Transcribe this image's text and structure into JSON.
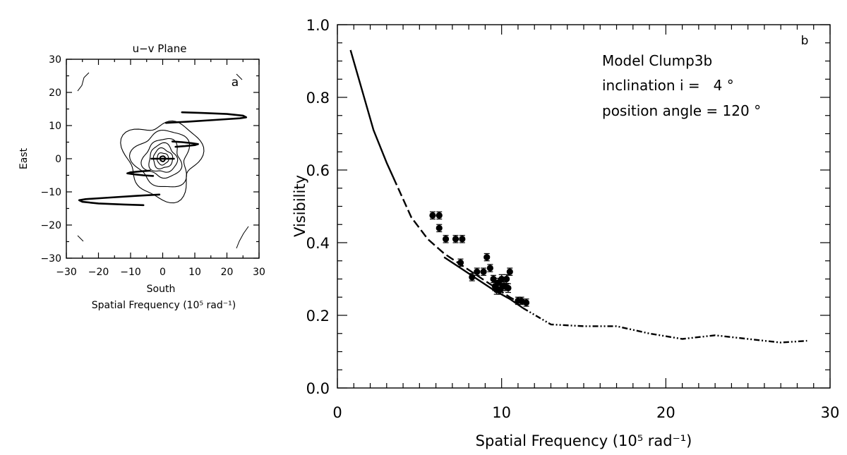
{
  "chart_data": [
    {
      "id": "a",
      "type": "contour",
      "title": "u−v Plane",
      "panel_label": "a",
      "xlabel": "South",
      "ylabel": "East",
      "xlabel2": "Spatial Frequency (10⁵ rad⁻¹)",
      "xlim": [
        -30,
        30
      ],
      "ylim": [
        -30,
        30
      ],
      "xticks": [
        -30,
        -20,
        -10,
        0,
        10,
        20,
        30
      ],
      "xtick_labels": [
        "−30",
        "−20",
        "−10",
        "0",
        "10",
        "20",
        "30"
      ],
      "yticks": [
        -30,
        -20,
        -10,
        0,
        10,
        20,
        30
      ],
      "ytick_labels": [
        "−30",
        "−20",
        "−10",
        "0",
        "10",
        "20",
        "30"
      ],
      "contour_radii": [
        0.8,
        1.8,
        3.0,
        4.3,
        5.8,
        8.5,
        11.5
      ],
      "uv_tracks": [
        {
          "x": [
            1,
            8,
            18,
            24,
            26,
            25,
            20,
            12,
            6
          ],
          "y": [
            10.8,
            11.2,
            11.8,
            12.2,
            12.5,
            13.0,
            13.5,
            13.8,
            14.0
          ]
        },
        {
          "x": [
            -1,
            -8,
            -18,
            -24,
            -26,
            -25,
            -20,
            -12,
            -6
          ],
          "y": [
            -10.8,
            -11.2,
            -11.8,
            -12.2,
            -12.5,
            -13.0,
            -13.5,
            -13.8,
            -14.0
          ]
        },
        {
          "x": [
            4,
            7,
            10,
            11,
            9,
            6,
            3
          ],
          "y": [
            3.6,
            3.8,
            4.1,
            4.4,
            4.7,
            5.0,
            5.2
          ]
        },
        {
          "x": [
            -4,
            -7,
            -10,
            -11,
            -9,
            -6,
            -3
          ],
          "y": [
            -3.6,
            -3.8,
            -4.1,
            -4.4,
            -4.7,
            -5.0,
            -5.2
          ]
        },
        {
          "x": [
            -3.5,
            3.5
          ],
          "y": [
            0,
            0
          ]
        }
      ]
    },
    {
      "id": "b",
      "type": "scatter-line",
      "panel_label": "b",
      "xlabel": "Spatial Frequency (10⁵ rad⁻¹)",
      "ylabel": "Visibility",
      "xlim": [
        0,
        30
      ],
      "ylim": [
        0,
        1.0
      ],
      "xticks": [
        0,
        10,
        20,
        30
      ],
      "xtick_labels": [
        "0",
        "10",
        "20",
        "30"
      ],
      "yticks": [
        0,
        0.2,
        0.4,
        0.6,
        0.8,
        1.0
      ],
      "ytick_labels": [
        "0.0",
        "0.2",
        "0.4",
        "0.6",
        "0.8",
        "1.0"
      ],
      "annotations": [
        "Model Clump3b",
        "inclination i =   4 °",
        "position angle = 120 °"
      ],
      "model_curves": [
        {
          "style": "solid",
          "x": [
            0.8,
            1.5,
            2.2,
            3.0,
            3.4
          ],
          "y": [
            0.93,
            0.82,
            0.71,
            0.62,
            0.58
          ]
        },
        {
          "style": "dashed",
          "x": [
            3.4,
            4.5,
            5.5,
            6.5,
            7.5,
            8.5,
            9.5,
            10.5,
            11.3
          ],
          "y": [
            0.58,
            0.47,
            0.41,
            0.37,
            0.34,
            0.31,
            0.28,
            0.25,
            0.23
          ]
        },
        {
          "style": "solid",
          "x": [
            6.5,
            7.5,
            8.5,
            9.5,
            10.5,
            11.3
          ],
          "y": [
            0.36,
            0.33,
            0.3,
            0.27,
            0.245,
            0.22
          ]
        },
        {
          "style": "dashdot",
          "x": [
            11.3,
            13,
            15,
            17,
            19,
            21,
            23,
            25,
            27,
            28.6
          ],
          "y": [
            0.22,
            0.175,
            0.17,
            0.17,
            0.15,
            0.135,
            0.145,
            0.135,
            0.125,
            0.13
          ]
        }
      ],
      "points": {
        "x": [
          5.8,
          6.2,
          6.2,
          6.6,
          7.2,
          7.6,
          7.5,
          8.2,
          8.5,
          8.9,
          9.1,
          9.3,
          9.5,
          9.6,
          9.7,
          9.8,
          9.9,
          10.0,
          10.1,
          10.2,
          10.3,
          10.4,
          10.5,
          11.0,
          11.2,
          11.5
        ],
        "y": [
          0.475,
          0.475,
          0.44,
          0.41,
          0.41,
          0.41,
          0.345,
          0.305,
          0.32,
          0.32,
          0.36,
          0.33,
          0.3,
          0.28,
          0.27,
          0.29,
          0.27,
          0.3,
          0.28,
          0.28,
          0.3,
          0.275,
          0.32,
          0.24,
          0.24,
          0.235
        ],
        "err": [
          0.01,
          0.01,
          0.01,
          0.01,
          0.01,
          0.01,
          0.01,
          0.01,
          0.01,
          0.01,
          0.01,
          0.01,
          0.01,
          0.012,
          0.012,
          0.012,
          0.012,
          0.012,
          0.012,
          0.012,
          0.012,
          0.012,
          0.01,
          0.01,
          0.01,
          0.01
        ]
      }
    }
  ]
}
